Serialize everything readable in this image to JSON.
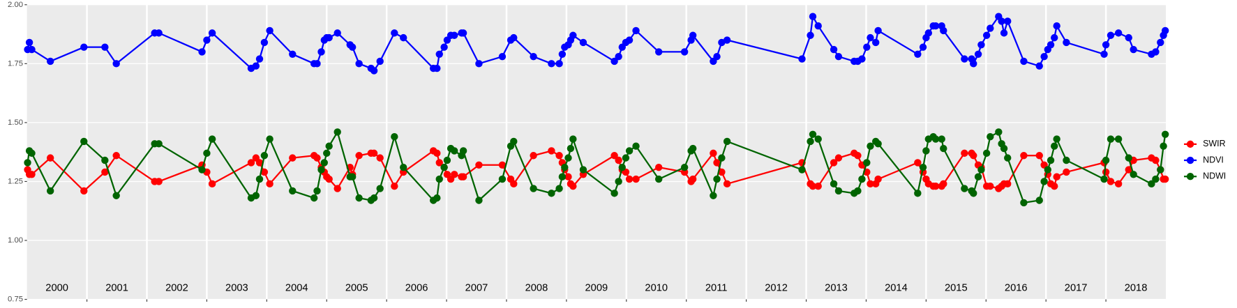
{
  "chart_data": {
    "type": "line",
    "x": [
      2000.01,
      2000.04,
      2000.08,
      2000.39,
      2000.95,
      2001.3,
      2001.49,
      2002.13,
      2002.2,
      2002.92,
      2003.0,
      2003.09,
      2003.74,
      2003.82,
      2003.88,
      2003.96,
      2004.05,
      2004.43,
      2004.79,
      2004.84,
      2004.91,
      2004.96,
      2005.0,
      2005.04,
      2005.18,
      2005.39,
      2005.43,
      2005.54,
      2005.74,
      2005.79,
      2005.89,
      2006.13,
      2006.28,
      2006.78,
      2006.84,
      2006.88,
      2006.96,
      2007.01,
      2007.07,
      2007.13,
      2007.25,
      2007.28,
      2007.54,
      2007.93,
      2008.07,
      2008.12,
      2008.45,
      2008.75,
      2008.88,
      2008.93,
      2008.97,
      2009.03,
      2009.07,
      2009.11,
      2009.28,
      2009.8,
      2009.87,
      2009.93,
      2009.99,
      2010.05,
      2010.16,
      2010.54,
      2010.97,
      2011.08,
      2011.11,
      2011.45,
      2011.51,
      2011.59,
      2011.68,
      2012.93,
      2013.07,
      2013.11,
      2013.2,
      2013.46,
      2013.54,
      2013.8,
      2013.86,
      2013.93,
      2014.01,
      2014.07,
      2014.16,
      2014.2,
      2014.86,
      2014.95,
      2015.0,
      2015.04,
      2015.12,
      2015.16,
      2015.26,
      2015.29,
      2015.64,
      2015.76,
      2015.79,
      2015.87,
      2015.92,
      2016.01,
      2016.07,
      2016.21,
      2016.26,
      2016.3,
      2016.36,
      2016.63,
      2016.89,
      2016.97,
      2017.03,
      2017.08,
      2017.14,
      2017.18,
      2017.34,
      2017.97,
      2018.0,
      2018.08,
      2018.21,
      2018.38,
      2018.46,
      2018.76,
      2018.83,
      2018.91,
      2018.96,
      2018.99
    ],
    "series": [
      {
        "name": "SWIR",
        "color": "#ff0000",
        "values": [
          1.3,
          1.28,
          1.28,
          1.35,
          1.21,
          1.29,
          1.36,
          1.25,
          1.25,
          1.32,
          1.29,
          1.24,
          1.33,
          1.35,
          1.33,
          1.29,
          1.24,
          1.35,
          1.36,
          1.35,
          1.31,
          1.29,
          1.27,
          1.26,
          1.22,
          1.31,
          1.28,
          1.36,
          1.37,
          1.37,
          1.35,
          1.23,
          1.29,
          1.38,
          1.37,
          1.33,
          1.31,
          1.28,
          1.26,
          1.28,
          1.27,
          1.27,
          1.32,
          1.32,
          1.26,
          1.24,
          1.36,
          1.38,
          1.36,
          1.33,
          1.3,
          1.27,
          1.24,
          1.23,
          1.28,
          1.36,
          1.34,
          1.3,
          1.29,
          1.26,
          1.26,
          1.31,
          1.29,
          1.25,
          1.26,
          1.37,
          1.33,
          1.29,
          1.24,
          1.33,
          1.24,
          1.23,
          1.23,
          1.33,
          1.35,
          1.37,
          1.36,
          1.32,
          1.29,
          1.24,
          1.24,
          1.26,
          1.33,
          1.29,
          1.26,
          1.24,
          1.23,
          1.23,
          1.23,
          1.24,
          1.37,
          1.37,
          1.36,
          1.32,
          1.31,
          1.23,
          1.23,
          1.22,
          1.23,
          1.24,
          1.24,
          1.36,
          1.36,
          1.32,
          1.28,
          1.24,
          1.23,
          1.27,
          1.29,
          1.33,
          1.29,
          1.25,
          1.24,
          1.3,
          1.34,
          1.35,
          1.34,
          1.3,
          1.26,
          1.26
        ]
      },
      {
        "name": "NDVI",
        "color": "#0000ff",
        "values": [
          1.81,
          1.84,
          1.81,
          1.76,
          1.82,
          1.82,
          1.75,
          1.88,
          1.88,
          1.8,
          1.85,
          1.88,
          1.73,
          1.74,
          1.77,
          1.84,
          1.89,
          1.79,
          1.75,
          1.75,
          1.8,
          1.85,
          1.86,
          1.86,
          1.88,
          1.83,
          1.82,
          1.75,
          1.73,
          1.72,
          1.76,
          1.88,
          1.86,
          1.73,
          1.73,
          1.79,
          1.82,
          1.85,
          1.87,
          1.87,
          1.88,
          1.88,
          1.75,
          1.78,
          1.85,
          1.86,
          1.78,
          1.75,
          1.75,
          1.79,
          1.82,
          1.83,
          1.85,
          1.87,
          1.84,
          1.76,
          1.78,
          1.82,
          1.84,
          1.85,
          1.89,
          1.8,
          1.8,
          1.85,
          1.87,
          1.76,
          1.78,
          1.84,
          1.85,
          1.77,
          1.87,
          1.95,
          1.91,
          1.81,
          1.78,
          1.76,
          1.76,
          1.77,
          1.82,
          1.86,
          1.84,
          1.89,
          1.79,
          1.82,
          1.86,
          1.88,
          1.91,
          1.91,
          1.91,
          1.89,
          1.77,
          1.77,
          1.75,
          1.79,
          1.83,
          1.87,
          1.9,
          1.95,
          1.93,
          1.88,
          1.93,
          1.76,
          1.74,
          1.78,
          1.81,
          1.83,
          1.86,
          1.91,
          1.84,
          1.79,
          1.83,
          1.87,
          1.88,
          1.86,
          1.81,
          1.79,
          1.8,
          1.84,
          1.87,
          1.89
        ]
      },
      {
        "name": "NDWI",
        "color": "#006400",
        "values": [
          1.33,
          1.38,
          1.37,
          1.21,
          1.42,
          1.34,
          1.19,
          1.41,
          1.41,
          1.3,
          1.37,
          1.43,
          1.18,
          1.19,
          1.26,
          1.36,
          1.43,
          1.21,
          1.18,
          1.21,
          1.3,
          1.33,
          1.37,
          1.4,
          1.46,
          1.27,
          1.27,
          1.18,
          1.17,
          1.18,
          1.22,
          1.44,
          1.31,
          1.17,
          1.18,
          1.26,
          1.31,
          1.34,
          1.39,
          1.38,
          1.36,
          1.38,
          1.17,
          1.26,
          1.4,
          1.42,
          1.22,
          1.2,
          1.22,
          1.27,
          1.31,
          1.35,
          1.39,
          1.43,
          1.3,
          1.2,
          1.25,
          1.31,
          1.35,
          1.38,
          1.4,
          1.26,
          1.31,
          1.38,
          1.39,
          1.19,
          1.26,
          1.35,
          1.42,
          1.3,
          1.42,
          1.45,
          1.43,
          1.24,
          1.21,
          1.2,
          1.21,
          1.26,
          1.33,
          1.4,
          1.42,
          1.41,
          1.2,
          1.31,
          1.38,
          1.43,
          1.44,
          1.43,
          1.43,
          1.39,
          1.22,
          1.21,
          1.2,
          1.27,
          1.3,
          1.37,
          1.44,
          1.46,
          1.41,
          1.39,
          1.35,
          1.16,
          1.17,
          1.25,
          1.3,
          1.34,
          1.4,
          1.43,
          1.34,
          1.26,
          1.34,
          1.43,
          1.43,
          1.35,
          1.28,
          1.24,
          1.26,
          1.3,
          1.4,
          1.45
        ]
      }
    ],
    "xlim": [
      2000,
      2019
    ],
    "xticks": [
      2001,
      2002,
      2003,
      2004,
      2005,
      2006,
      2007,
      2008,
      2009,
      2010,
      2011,
      2012,
      2013,
      2014,
      2015,
      2016,
      2017,
      2018
    ],
    "year_labels": [
      {
        "value": 2000.5,
        "label": "2000"
      },
      {
        "value": 2001.5,
        "label": "2001"
      },
      {
        "value": 2002.5,
        "label": "2002"
      },
      {
        "value": 2003.5,
        "label": "2003"
      },
      {
        "value": 2004.5,
        "label": "2004"
      },
      {
        "value": 2005.5,
        "label": "2005"
      },
      {
        "value": 2006.5,
        "label": "2006"
      },
      {
        "value": 2007.5,
        "label": "2007"
      },
      {
        "value": 2008.5,
        "label": "2008"
      },
      {
        "value": 2009.5,
        "label": "2009"
      },
      {
        "value": 2010.5,
        "label": "2010"
      },
      {
        "value": 2011.5,
        "label": "2011"
      },
      {
        "value": 2012.5,
        "label": "2012"
      },
      {
        "value": 2013.5,
        "label": "2013"
      },
      {
        "value": 2014.5,
        "label": "2014"
      },
      {
        "value": 2015.5,
        "label": "2015"
      },
      {
        "value": 2016.5,
        "label": "2016"
      },
      {
        "value": 2017.5,
        "label": "2017"
      },
      {
        "value": 2018.5,
        "label": "2018"
      }
    ],
    "ylim": [
      0.75,
      2
    ],
    "yticks": [
      0.75,
      {
        "value": 1,
        "label": "1.00"
      },
      1.25,
      {
        "value": 1.5,
        "label": "1.50"
      },
      1.75,
      {
        "value": 2,
        "label": "2.00"
      }
    ],
    "grid": true
  }
}
